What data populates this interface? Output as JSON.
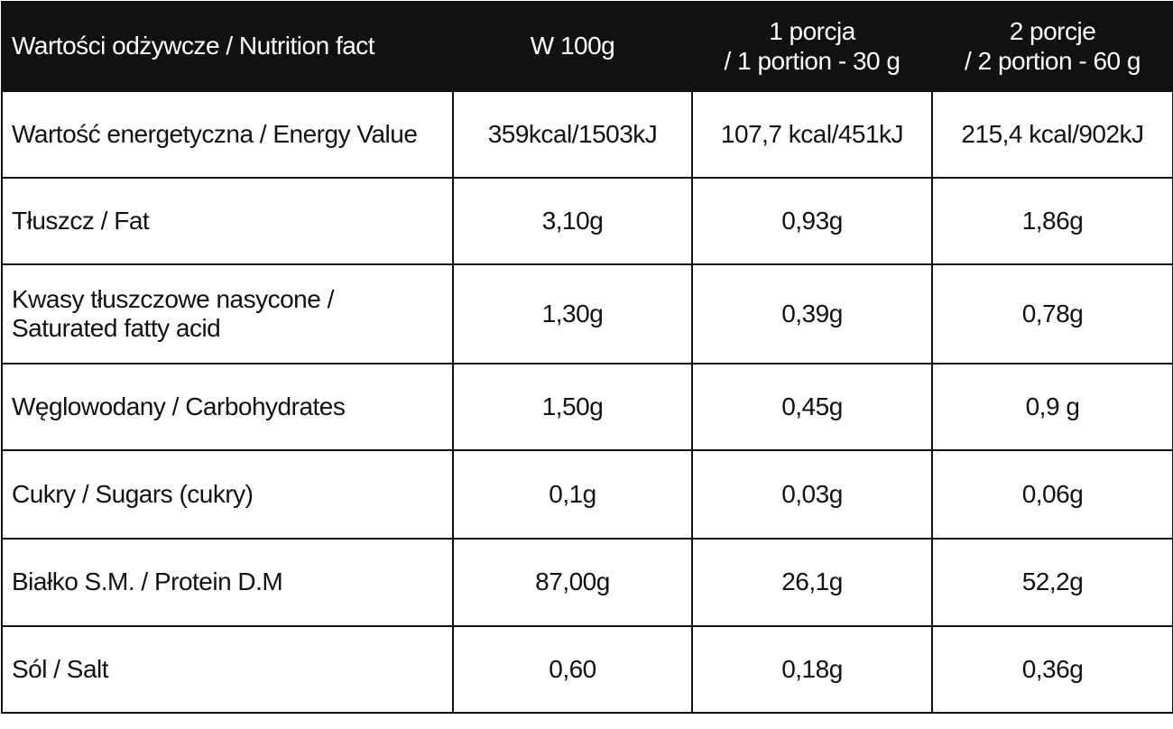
{
  "table": {
    "header": [
      "Wartości odżywcze / Nutrition fact",
      "W 100g",
      "1 porcja\n/ 1 portion - 30 g",
      "2 porcje\n/ 2 portion - 60 g"
    ],
    "rows": [
      [
        "Wartość energetyczna / Energy Value",
        "359kcal/1503kJ",
        "107,7 kcal/451kJ",
        "215,4 kcal/902kJ"
      ],
      [
        "Tłuszcz / Fat",
        "3,10g",
        "0,93g",
        "1,86g"
      ],
      [
        "Kwasy tłuszczowe nasycone / Saturated fatty acid",
        "1,30g",
        "0,39g",
        "0,78g"
      ],
      [
        "Węglowodany / Carbohydrates",
        "1,50g",
        "0,45g",
        "0,9 g"
      ],
      [
        "Cukry / Sugars (cukry)",
        "0,1g",
        "0,03g",
        "0,06g"
      ],
      [
        "Białko S.M. / Protein D.M",
        "87,00g",
        "26,1g",
        "52,2g"
      ],
      [
        "Sól / Salt",
        "0,60",
        "0,18g",
        "0,36g"
      ]
    ]
  }
}
